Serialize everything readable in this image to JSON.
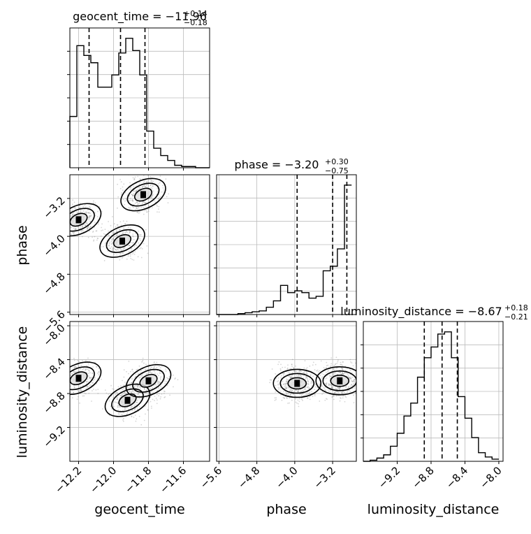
{
  "chart_data": {
    "type": "corner",
    "parameters": [
      "geocent_time",
      "phase",
      "luminosity_distance"
    ],
    "titles": [
      {
        "parameter": "geocent_time",
        "prefix": "geocent_time = ",
        "median": "−11.96",
        "plus": "+0.14",
        "minus": "−0.18"
      },
      {
        "parameter": "phase",
        "prefix": "phase = ",
        "median": "−3.20",
        "plus": "+0.30",
        "minus": "−0.75"
      },
      {
        "parameter": "luminosity_distance",
        "prefix": "luminosity_distance = ",
        "median": "−8.67",
        "plus": "+0.18",
        "minus": "−0.21"
      }
    ],
    "axis_labels": {
      "x": [
        "geocent_time",
        "phase",
        "luminosity_distance"
      ],
      "y": [
        "phase",
        "luminosity_distance"
      ]
    },
    "ranges": {
      "geocent_time": [
        -12.25,
        -11.45
      ],
      "phase": [
        -5.65,
        -2.7
      ],
      "luminosity_distance": [
        -9.6,
        -7.95
      ]
    },
    "x_ticks": {
      "geocent_time": [
        {
          "value": -12.2,
          "label": "−12.2"
        },
        {
          "value": -12.0,
          "label": "−12.0"
        },
        {
          "value": -11.8,
          "label": "−11.8"
        },
        {
          "value": -11.6,
          "label": "−11.6"
        }
      ],
      "phase": [
        {
          "value": -5.6,
          "label": "−5.6"
        },
        {
          "value": -4.8,
          "label": "−4.8"
        },
        {
          "value": -4.0,
          "label": "−4.0"
        },
        {
          "value": -3.2,
          "label": "−3.2"
        }
      ],
      "luminosity_distance": [
        {
          "value": -9.2,
          "label": "−9.2"
        },
        {
          "value": -8.8,
          "label": "−8.8"
        },
        {
          "value": -8.4,
          "label": "−8.4"
        },
        {
          "value": -8.0,
          "label": "−8.0"
        }
      ]
    },
    "y_ticks": {
      "phase": [
        {
          "value": -3.2,
          "label": "−3.2"
        },
        {
          "value": -4.0,
          "label": "−4.0"
        },
        {
          "value": -4.8,
          "label": "−4.8"
        },
        {
          "value": -5.6,
          "label": "−5.6"
        }
      ],
      "luminosity_distance": [
        {
          "value": -8.0,
          "label": "−8.0"
        },
        {
          "value": -8.4,
          "label": "−8.4"
        },
        {
          "value": -8.8,
          "label": "−8.8"
        },
        {
          "value": -9.2,
          "label": "−9.2"
        }
      ]
    },
    "histograms": {
      "geocent_time": {
        "bin_edges": [
          -12.25,
          -12.21,
          -12.17,
          -12.13,
          -12.09,
          -12.05,
          -12.01,
          -11.97,
          -11.93,
          -11.89,
          -11.85,
          -11.81,
          -11.77,
          -11.73,
          -11.69,
          -11.65,
          -11.61,
          -11.57,
          -11.53,
          -11.49,
          -11.45
        ],
        "counts": [
          42,
          100,
          92,
          86,
          66,
          66,
          76,
          94,
          106,
          96,
          76,
          30,
          16,
          10,
          6,
          2,
          1,
          1,
          0,
          0
        ],
        "quantiles": [
          -12.14,
          -11.96,
          -11.82
        ]
      },
      "phase": {
        "bin_edges": [
          -5.65,
          -5.5,
          -5.35,
          -5.2,
          -5.05,
          -4.9,
          -4.75,
          -4.6,
          -4.45,
          -4.3,
          -4.15,
          -4.0,
          -3.85,
          -3.7,
          -3.55,
          -3.4,
          -3.25,
          -3.1,
          -2.95,
          -2.8
        ],
        "counts": [
          0,
          0,
          0,
          1,
          2,
          3,
          4,
          8,
          15,
          32,
          24,
          26,
          24,
          18,
          20,
          48,
          53,
          72,
          142
        ],
        "quantiles": [
          -3.95,
          -3.2,
          -2.9
        ]
      },
      "luminosity_distance": {
        "bin_edges": [
          -9.6,
          -9.52,
          -9.44,
          -9.36,
          -9.28,
          -9.2,
          -9.12,
          -9.04,
          -8.96,
          -8.88,
          -8.8,
          -8.72,
          -8.64,
          -8.56,
          -8.48,
          -8.4,
          -8.32,
          -8.24,
          -8.16,
          -8.08,
          -8.0
        ],
        "counts": [
          0,
          1,
          3,
          6,
          14,
          26,
          42,
          54,
          78,
          96,
          106,
          118,
          120,
          96,
          60,
          40,
          22,
          8,
          4,
          2
        ],
        "quantiles": [
          -8.88,
          -8.67,
          -8.49
        ]
      }
    },
    "joint_2d": [
      {
        "x": "geocent_time",
        "y": "phase",
        "peaks": [
          {
            "x": -11.83,
            "y": -3.12
          },
          {
            "x": -12.2,
            "y": -3.65
          },
          {
            "x": -11.95,
            "y": -4.1
          }
        ]
      },
      {
        "x": "geocent_time",
        "y": "luminosity_distance",
        "peaks": [
          {
            "x": -12.2,
            "y": -8.62
          },
          {
            "x": -11.92,
            "y": -8.88
          },
          {
            "x": -11.8,
            "y": -8.65
          }
        ]
      },
      {
        "x": "phase",
        "y": "luminosity_distance",
        "peaks": [
          {
            "x": -3.95,
            "y": -8.68
          },
          {
            "x": -3.05,
            "y": -8.65
          }
        ]
      }
    ],
    "grid": true
  }
}
